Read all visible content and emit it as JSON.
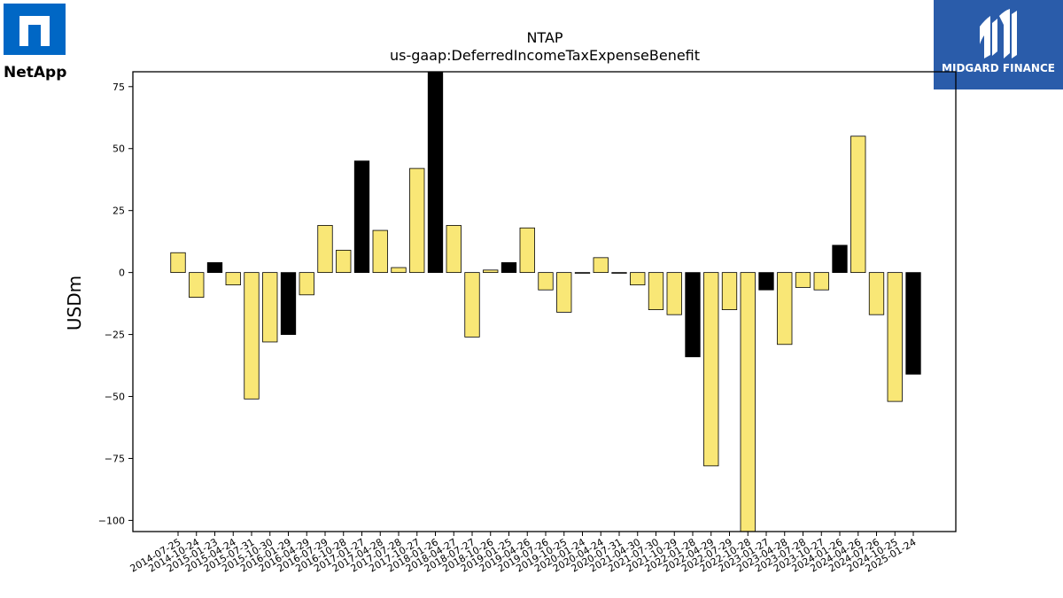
{
  "logos": {
    "left_text": "NetApp",
    "right_text": "MIDGARD FINANCE",
    "right_bg": "#2a5caa",
    "left_color": "#0067c5"
  },
  "chart_data": {
    "type": "bar",
    "title": "NTAP",
    "subtitle": "us-gaap:DeferredIncomeTaxExpenseBenefit",
    "xlabel": "",
    "ylabel": "USDm",
    "ylim": [
      -104.5,
      81
    ],
    "yticks": [
      75,
      50,
      25,
      0,
      -25,
      -50,
      -75,
      -100
    ],
    "ytick_labels": [
      "75",
      "50",
      "25",
      "0",
      "−25",
      "−50",
      "−75",
      "−100"
    ],
    "grid": false,
    "colors": {
      "regular": "#f9e776",
      "highlight": "#000000",
      "edge": "#000000"
    },
    "categories": [
      "2014-07-25",
      "2014-10-24",
      "2015-01-23",
      "2015-04-24",
      "2015-07-31",
      "2015-10-30",
      "2016-01-29",
      "2016-04-29",
      "2016-07-29",
      "2016-10-28",
      "2017-01-27",
      "2017-04-28",
      "2017-07-28",
      "2017-10-27",
      "2018-01-26",
      "2018-04-27",
      "2018-07-27",
      "2018-10-26",
      "2019-01-25",
      "2019-04-26",
      "2019-07-26",
      "2019-10-25",
      "2020-01-24",
      "2020-04-24",
      "2020-07-31",
      "2021-04-30",
      "2021-07-30",
      "2021-10-29",
      "2022-01-28",
      "2022-04-29",
      "2022-07-29",
      "2022-10-28",
      "2023-01-27",
      "2023-04-28",
      "2023-07-28",
      "2023-10-27",
      "2024-01-26",
      "2024-04-26",
      "2024-07-26",
      "2024-10-25",
      "2025-01-24"
    ],
    "values": [
      8,
      -10,
      4,
      -5,
      -51,
      -28,
      -25,
      -9,
      19,
      9,
      45,
      17,
      2,
      42,
      81,
      19,
      -26,
      1,
      4,
      18,
      -7,
      -16,
      -0.3,
      6,
      -0.3,
      -5,
      -15,
      -17,
      -34,
      -78,
      -15,
      -104.5,
      -7,
      -29,
      -6,
      -7,
      11,
      55,
      -17,
      -52,
      -41
    ],
    "highlight": [
      false,
      false,
      true,
      false,
      false,
      false,
      true,
      false,
      false,
      false,
      true,
      false,
      false,
      false,
      true,
      false,
      false,
      false,
      true,
      false,
      false,
      false,
      false,
      false,
      false,
      false,
      false,
      false,
      true,
      false,
      false,
      false,
      true,
      false,
      false,
      false,
      true,
      false,
      false,
      false,
      true
    ]
  }
}
